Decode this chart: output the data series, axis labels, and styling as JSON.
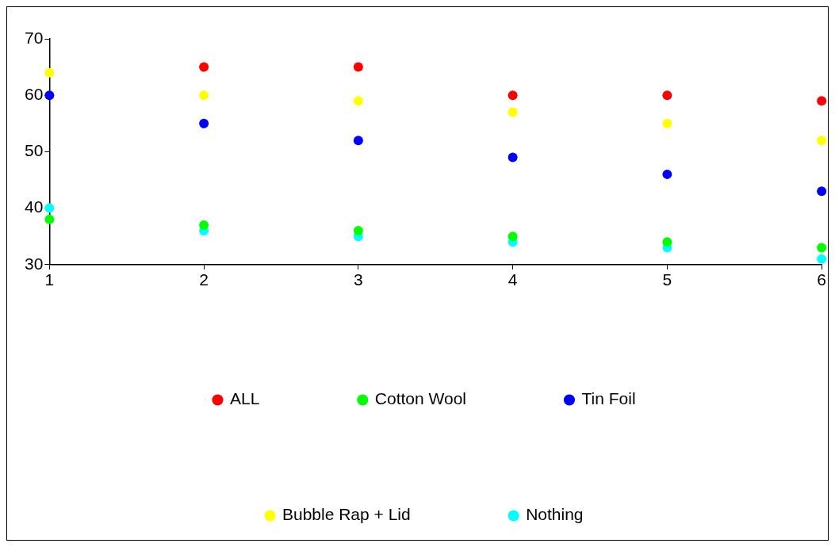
{
  "chart_data": {
    "type": "scatter",
    "x": [
      1,
      2,
      3,
      4,
      5,
      6
    ],
    "xlim": [
      1,
      6
    ],
    "xticks": [
      1,
      2,
      3,
      4,
      5,
      6
    ],
    "ylim": [
      30,
      70
    ],
    "yticks": [
      30,
      40,
      50,
      60,
      70
    ],
    "grid": false,
    "legend": "bottom",
    "marker": "circle",
    "series": [
      {
        "name": "ALL",
        "color": "#ff0000",
        "values": [
          null,
          65,
          65,
          60,
          60,
          59
        ]
      },
      {
        "name": "Cotton Wool",
        "color": "#00ff00",
        "values": [
          38,
          37,
          36,
          35,
          34,
          33
        ]
      },
      {
        "name": "Tin Foil",
        "color": "#0000ff",
        "values": [
          60,
          55,
          52,
          49,
          46,
          43
        ]
      },
      {
        "name": "Bubble Rap + Lid",
        "color": "#ffff00",
        "values": [
          64,
          60,
          59,
          57,
          55,
          52
        ]
      },
      {
        "name": "Nothing",
        "color": "#00ffff",
        "values": [
          40,
          36,
          35,
          34,
          33,
          31
        ]
      }
    ]
  }
}
